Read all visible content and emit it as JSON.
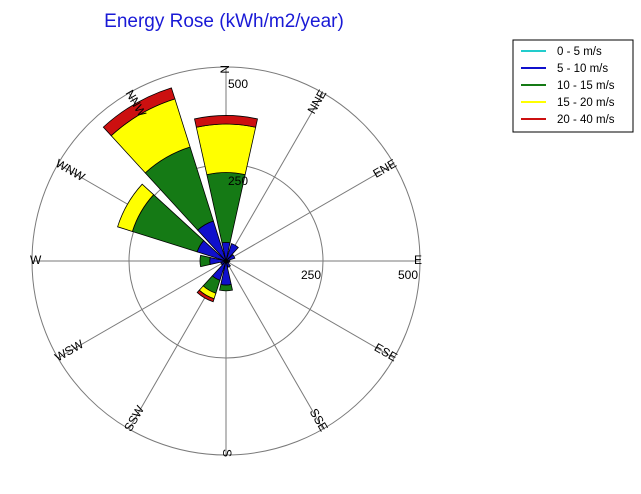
{
  "chart_data": {
    "type": "polar-bar",
    "title": "Energy Rose (kWh/m2/year)",
    "directions": [
      "N",
      "NNE",
      "ENE",
      "E",
      "ESE",
      "SSE",
      "S",
      "SSW",
      "WSW",
      "W",
      "WNW",
      "NNW"
    ],
    "radial_ticks": [
      250,
      500
    ],
    "radial_max": 500,
    "grid": true,
    "legend_position": "top-right",
    "series": [
      {
        "name": "0 - 5 m/s",
        "color": "#22cccc"
      },
      {
        "name": "5 - 10 m/s",
        "color": "#1010cc"
      },
      {
        "name": "10 - 15 m/s",
        "color": "#157a15"
      },
      {
        "name": "15 - 20 m/s",
        "color": "#ffff00"
      },
      {
        "name": "20 - 40 m/s",
        "color": "#cc1010"
      }
    ],
    "values": {
      "N": [
        3,
        45,
        180,
        125,
        22
      ],
      "NNE": [
        2,
        45,
        0,
        0,
        0
      ],
      "ENE": [
        2,
        22,
        0,
        0,
        0
      ],
      "E": [
        2,
        8,
        0,
        0,
        0
      ],
      "ESE": [
        2,
        6,
        0,
        0,
        0
      ],
      "SSE": [
        2,
        15,
        0,
        0,
        0
      ],
      "S": [
        2,
        60,
        15,
        0,
        0
      ],
      "SSW": [
        2,
        50,
        35,
        15,
        8
      ],
      "WSW": [
        2,
        12,
        0,
        0,
        0
      ],
      "W": [
        2,
        40,
        25,
        0,
        0
      ],
      "WNW": [
        3,
        75,
        175,
        40,
        0
      ],
      "NNW": [
        3,
        105,
        200,
        130,
        30
      ]
    }
  }
}
